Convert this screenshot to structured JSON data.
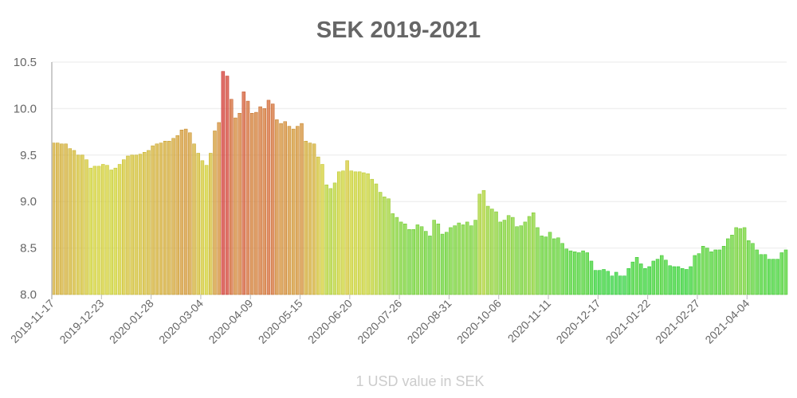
{
  "chart_data": {
    "type": "bar",
    "title": "SEK 2019-2021",
    "xlabel": "1 USD value in SEK",
    "ylabel": "",
    "ylim": [
      8.0,
      10.5
    ],
    "yticks": [
      "8.0",
      "8.5",
      "9.0",
      "9.5",
      "10.0",
      "10.5"
    ],
    "xticks": [
      "2019-11-17",
      "2019-12-23",
      "2020-01-28",
      "2020-03-04",
      "2020-04-09",
      "2020-05-15",
      "2020-06-20",
      "2020-07-26",
      "2020-08-31",
      "2020-10-06",
      "2020-11-11",
      "2020-12-17",
      "2021-01-22",
      "2021-02-27",
      "2021-04-04"
    ],
    "grid": true,
    "legend": "none",
    "colors": {
      "low": "#2ed64a",
      "mid": "#d4c23c",
      "high": "#d23c2c",
      "title": "#666666",
      "axis_title": "#cccccc"
    },
    "x": [
      "2019-11-17",
      "2019-11-20",
      "2019-11-23",
      "2019-11-26",
      "2019-11-29",
      "2019-12-02",
      "2019-12-05",
      "2019-12-08",
      "2019-12-11",
      "2019-12-14",
      "2019-12-17",
      "2019-12-20",
      "2019-12-23",
      "2019-12-26",
      "2019-12-29",
      "2020-01-01",
      "2020-01-04",
      "2020-01-07",
      "2020-01-10",
      "2020-01-13",
      "2020-01-16",
      "2020-01-19",
      "2020-01-22",
      "2020-01-25",
      "2020-01-28",
      "2020-01-31",
      "2020-02-03",
      "2020-02-06",
      "2020-02-09",
      "2020-02-12",
      "2020-02-15",
      "2020-02-18",
      "2020-02-21",
      "2020-02-24",
      "2020-02-27",
      "2020-03-01",
      "2020-03-04",
      "2020-03-07",
      "2020-03-10",
      "2020-03-13",
      "2020-03-16",
      "2020-03-19",
      "2020-03-22",
      "2020-03-25",
      "2020-03-28",
      "2020-03-31",
      "2020-04-03",
      "2020-04-06",
      "2020-04-09",
      "2020-04-12",
      "2020-04-15",
      "2020-04-18",
      "2020-04-21",
      "2020-04-24",
      "2020-04-27",
      "2020-04-30",
      "2020-05-03",
      "2020-05-06",
      "2020-05-09",
      "2020-05-12",
      "2020-05-15",
      "2020-05-18",
      "2020-05-21",
      "2020-05-24",
      "2020-05-27",
      "2020-05-30",
      "2020-06-02",
      "2020-06-05",
      "2020-06-08",
      "2020-06-11",
      "2020-06-14",
      "2020-06-17",
      "2020-06-20",
      "2020-06-23",
      "2020-06-26",
      "2020-06-29",
      "2020-07-02",
      "2020-07-05",
      "2020-07-08",
      "2020-07-11",
      "2020-07-14",
      "2020-07-17",
      "2020-07-20",
      "2020-07-23",
      "2020-07-26",
      "2020-07-29",
      "2020-08-01",
      "2020-08-04",
      "2020-08-07",
      "2020-08-10",
      "2020-08-13",
      "2020-08-16",
      "2020-08-19",
      "2020-08-22",
      "2020-08-25",
      "2020-08-28",
      "2020-08-31",
      "2020-09-03",
      "2020-09-06",
      "2020-09-09",
      "2020-09-12",
      "2020-09-15",
      "2020-09-18",
      "2020-09-21",
      "2020-09-24",
      "2020-09-27",
      "2020-09-30",
      "2020-10-03",
      "2020-10-06",
      "2020-10-09",
      "2020-10-12",
      "2020-10-15",
      "2020-10-18",
      "2020-10-21",
      "2020-10-24",
      "2020-10-27",
      "2020-10-30",
      "2020-11-02",
      "2020-11-05",
      "2020-11-08",
      "2020-11-11",
      "2020-11-14",
      "2020-11-17",
      "2020-11-20",
      "2020-11-23",
      "2020-11-26",
      "2020-11-29",
      "2020-12-02",
      "2020-12-05",
      "2020-12-08",
      "2020-12-11",
      "2020-12-14",
      "2020-12-17",
      "2020-12-20",
      "2020-12-23",
      "2020-12-26",
      "2020-12-29",
      "2021-01-01",
      "2021-01-04",
      "2021-01-07",
      "2021-01-10",
      "2021-01-13",
      "2021-01-16",
      "2021-01-19",
      "2021-01-22",
      "2021-01-25",
      "2021-01-28",
      "2021-01-31",
      "2021-02-03",
      "2021-02-06",
      "2021-02-09",
      "2021-02-12",
      "2021-02-15",
      "2021-02-18",
      "2021-02-21",
      "2021-02-24",
      "2021-02-27",
      "2021-03-02",
      "2021-03-05",
      "2021-03-08",
      "2021-03-11",
      "2021-03-14",
      "2021-03-17",
      "2021-03-20",
      "2021-03-23",
      "2021-03-26",
      "2021-03-29",
      "2021-04-01",
      "2021-04-04",
      "2021-04-07",
      "2021-04-10",
      "2021-04-13",
      "2021-04-16",
      "2021-04-19",
      "2021-04-22",
      "2021-04-25",
      "2021-04-28",
      "2021-05-01"
    ],
    "values": [
      9.63,
      9.63,
      9.62,
      9.62,
      9.57,
      9.55,
      9.5,
      9.5,
      9.45,
      9.36,
      9.38,
      9.38,
      9.4,
      9.39,
      9.34,
      9.36,
      9.4,
      9.45,
      9.49,
      9.5,
      9.5,
      9.51,
      9.53,
      9.55,
      9.6,
      9.62,
      9.63,
      9.65,
      9.65,
      9.68,
      9.71,
      9.77,
      9.78,
      9.74,
      9.62,
      9.52,
      9.44,
      9.39,
      9.52,
      9.76,
      9.85,
      10.4,
      10.35,
      10.1,
      9.9,
      9.95,
      10.18,
      10.08,
      9.95,
      9.96,
      10.02,
      10.0,
      10.09,
      10.05,
      9.88,
      9.84,
      9.86,
      9.81,
      9.78,
      9.81,
      9.84,
      9.65,
      9.63,
      9.62,
      9.48,
      9.4,
      9.18,
      9.14,
      9.2,
      9.32,
      9.33,
      9.44,
      9.33,
      9.32,
      9.32,
      9.31,
      9.3,
      9.24,
      9.19,
      9.1,
      9.05,
      9.03,
      8.87,
      8.83,
      8.78,
      8.76,
      8.7,
      8.7,
      8.75,
      8.73,
      8.68,
      8.63,
      8.8,
      8.76,
      8.65,
      8.67,
      8.72,
      8.74,
      8.77,
      8.75,
      8.78,
      8.74,
      8.8,
      9.08,
      9.12,
      8.95,
      8.92,
      8.89,
      8.78,
      8.8,
      8.85,
      8.83,
      8.73,
      8.74,
      8.78,
      8.84,
      8.88,
      8.72,
      8.63,
      8.62,
      8.67,
      8.6,
      8.61,
      8.55,
      8.49,
      8.47,
      8.46,
      8.45,
      8.47,
      8.45,
      8.36,
      8.26,
      8.26,
      8.27,
      8.25,
      8.2,
      8.24,
      8.2,
      8.2,
      8.28,
      8.35,
      8.4,
      8.33,
      8.28,
      8.3,
      8.36,
      8.38,
      8.42,
      8.37,
      8.31,
      8.3,
      8.3,
      8.28,
      8.27,
      8.3,
      8.42,
      8.44,
      8.52,
      8.5,
      8.46,
      8.48,
      8.48,
      8.52,
      8.6,
      8.64,
      8.72,
      8.71,
      8.72,
      8.58,
      8.55,
      8.48,
      8.43,
      8.43,
      8.38,
      8.38,
      8.38,
      8.45,
      8.48
    ]
  }
}
